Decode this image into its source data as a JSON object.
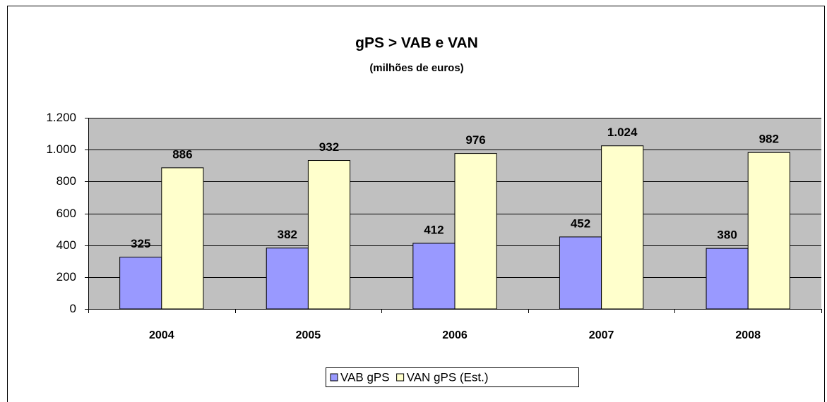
{
  "chart_data": {
    "type": "bar",
    "title": "gPS > VAB e VAN",
    "subtitle": "(milhões de euros)",
    "categories": [
      "2004",
      "2005",
      "2006",
      "2007",
      "2008"
    ],
    "series": [
      {
        "name": "VAB gPS",
        "color": "#9999ff",
        "values": [
          325,
          382,
          412,
          452,
          380
        ]
      },
      {
        "name": "VAN gPS (Est.)",
        "color": "#ffffcc",
        "values": [
          886,
          932,
          976,
          1024,
          982
        ],
        "value_labels": [
          "886",
          "932",
          "976",
          "1.024",
          "982"
        ]
      }
    ],
    "ylim": [
      0,
      1200
    ],
    "yticks": [
      0,
      200,
      400,
      600,
      800,
      {
        "value": 1000,
        "label": "1.000"
      },
      {
        "value": 1200,
        "label": "1.200"
      }
    ],
    "grid": true,
    "legend": "bottom",
    "plot_background": "#c0c0c0"
  }
}
